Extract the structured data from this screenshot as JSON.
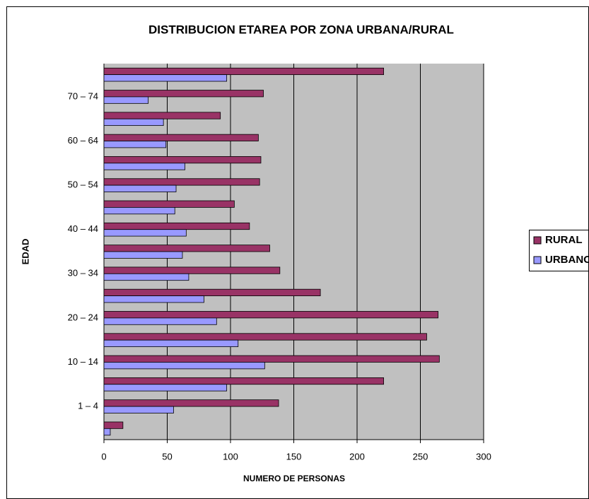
{
  "chart_data": {
    "type": "hbar",
    "title": "DISTRIBUCION ETAREA POR ZONA URBANA/RURAL",
    "xlabel": "NUMERO DE PERSONAS",
    "ylabel": "EDAD",
    "categories": [
      null,
      "1 – 4",
      null,
      "10 – 14",
      null,
      "20 – 24",
      null,
      "30 – 34",
      null,
      "40 – 44",
      null,
      "50 – 54",
      null,
      "60 – 64",
      null,
      "70 – 74",
      null
    ],
    "series": [
      {
        "name": "RURAL",
        "color": "#993366",
        "values": [
          15,
          138,
          221,
          265,
          255,
          264,
          171,
          139,
          131,
          115,
          103,
          123,
          124,
          122,
          92,
          126,
          221
        ]
      },
      {
        "name": "URBANO",
        "color": "#9999ff",
        "values": [
          5,
          55,
          97,
          127,
          106,
          89,
          79,
          67,
          62,
          65,
          56,
          57,
          64,
          49,
          47,
          35,
          97
        ]
      }
    ],
    "xlim": [
      0,
      300
    ],
    "xticks": [
      0,
      50,
      100,
      150,
      200,
      250,
      300
    ],
    "grid": true,
    "legend": "right"
  }
}
